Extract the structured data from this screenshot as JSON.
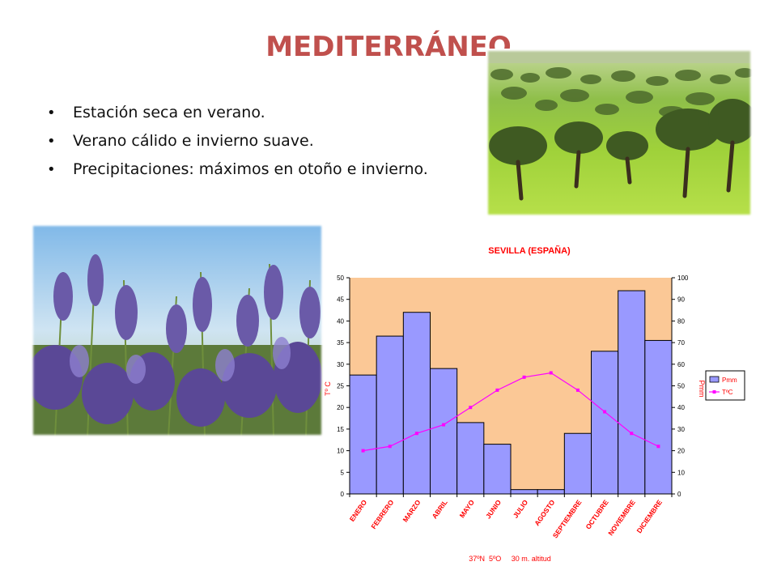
{
  "slide": {
    "title": "MEDITERRÁNEO",
    "bullets": [
      "Estación seca en verano.",
      "Verano cálido e invierno suave.",
      "Precipitaciones: máximos en otoño e invierno."
    ]
  },
  "images": {
    "trees": "dehesa-landscape-photo",
    "lavender": "lavender-field-photo"
  },
  "colors": {
    "title": "#C0504D",
    "plot_background": "#FBC896",
    "bar_fill": "#9999FF",
    "temp_line": "#FF00FF",
    "chart_text": "#FF0000"
  },
  "chart_data": {
    "type": "bar",
    "title": "SEVILLA (ESPAÑA)",
    "subtitle": "37ºN  5ºO     30 m. altitud",
    "categories": [
      "ENERO",
      "FEBRERO",
      "MARZO",
      "ABRIL",
      "MAYO",
      "JUNIO",
      "JULIO",
      "AGOSTO",
      "SEPTIEMBRE",
      "OCTUBRE",
      "NOVIEMBRE",
      "DICIEMBRE"
    ],
    "series": [
      {
        "name": "Pmm",
        "type": "bar",
        "axis": "right",
        "values": [
          55,
          73,
          84,
          58,
          33,
          23,
          2,
          2,
          28,
          66,
          94,
          71
        ]
      },
      {
        "name": "TºC",
        "type": "line",
        "axis": "left",
        "values": [
          10,
          11,
          14,
          16,
          20,
          24,
          27,
          28,
          24,
          19,
          14,
          11
        ]
      }
    ],
    "y_left": {
      "label": "Tº C",
      "ylim": [
        0,
        50
      ],
      "ticks": [
        0,
        5,
        10,
        15,
        20,
        25,
        30,
        35,
        40,
        45,
        50
      ]
    },
    "y_right": {
      "label": "Pmm",
      "ylim": [
        0,
        100
      ],
      "ticks": [
        0,
        10,
        20,
        30,
        40,
        50,
        60,
        70,
        80,
        90,
        100
      ]
    },
    "legend": "right",
    "grid": false
  }
}
